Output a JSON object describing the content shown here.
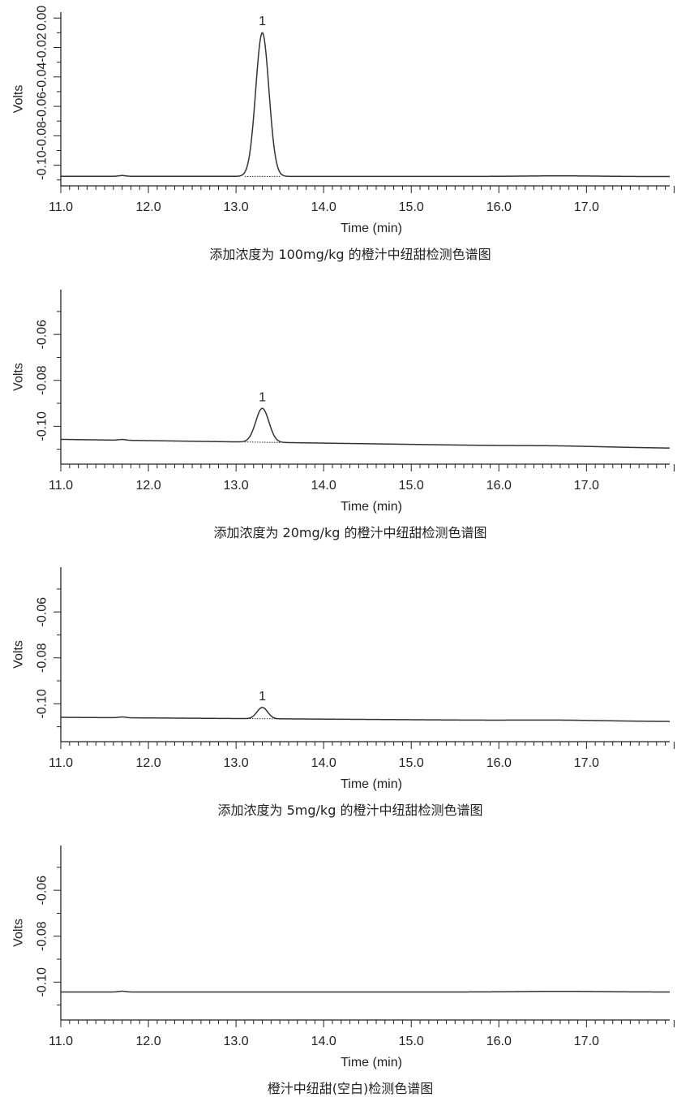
{
  "chart_data": [
    {
      "type": "line",
      "caption": "添加浓度为 100mg/kg 的橙汁中纽甜检测色谱图",
      "xlabel": "Time (min)",
      "ylabel": "Volts",
      "x_ticks": [
        "11.0",
        "12.0",
        "13.0",
        "14.0",
        "15.0",
        "16.0",
        "17.0"
      ],
      "xlim": [
        11.0,
        17.95
      ],
      "y_ticks": [
        "-0.10",
        "-0.08",
        "-0.06",
        "-0.04",
        "-0.02",
        "0.00"
      ],
      "ylim": [
        -0.114,
        0.004
      ],
      "baseline_start": -0.1075,
      "baseline_end": -0.1077,
      "peak": {
        "label": "1",
        "x": 13.3,
        "y": -0.0099,
        "sigma": 0.075,
        "range": [
          13.1,
          13.5
        ]
      }
    },
    {
      "type": "line",
      "caption": "添加浓度为 20mg/kg 的橙汁中纽甜检测色谱图",
      "xlabel": "Time (min)",
      "ylabel": "Volts",
      "x_ticks": [
        "11.0",
        "12.0",
        "13.0",
        "14.0",
        "15.0",
        "16.0",
        "17.0"
      ],
      "xlim": [
        11.0,
        17.95
      ],
      "y_ticks": [
        "-0.10",
        "-0.08",
        "-0.06"
      ],
      "ylim": [
        -0.1165,
        -0.0405
      ],
      "baseline_start": -0.1057,
      "baseline_end": -0.1095,
      "peak": {
        "label": "1",
        "x": 13.3,
        "y": -0.0922,
        "sigma": 0.075,
        "range": [
          13.1,
          13.5
        ]
      }
    },
    {
      "type": "line",
      "caption": "添加浓度为 5mg/kg 的橙汁中纽甜检测色谱图",
      "xlabel": "Time (min)",
      "ylabel": "Volts",
      "x_ticks": [
        "11.0",
        "12.0",
        "13.0",
        "14.0",
        "15.0",
        "16.0",
        "17.0"
      ],
      "xlim": [
        11.0,
        17.95
      ],
      "y_ticks": [
        "-0.10",
        "-0.08",
        "-0.06"
      ],
      "ylim": [
        -0.1165,
        -0.0405
      ],
      "baseline_start": -0.1059,
      "baseline_end": -0.1077,
      "peak": {
        "label": "1",
        "x": 13.3,
        "y": -0.1016,
        "sigma": 0.06,
        "range": [
          13.1,
          13.5
        ]
      }
    },
    {
      "type": "line",
      "caption": "橙汁中纽甜(空白)检测色谱图",
      "xlabel": "Time (min)",
      "ylabel": "Volts",
      "x_ticks": [
        "11.0",
        "12.0",
        "13.0",
        "14.0",
        "15.0",
        "16.0",
        "17.0"
      ],
      "xlim": [
        11.0,
        17.95
      ],
      "y_ticks": [
        "-0.10",
        "-0.08",
        "-0.06"
      ],
      "ylim": [
        -0.1165,
        -0.0405
      ],
      "baseline_start": -0.1043,
      "baseline_end": -0.1043,
      "peak": null
    }
  ]
}
